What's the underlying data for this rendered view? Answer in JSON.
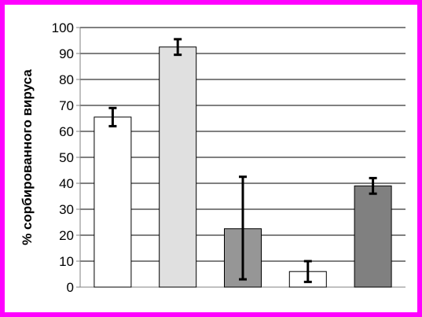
{
  "chart_data": {
    "type": "bar",
    "title": "",
    "xlabel": "",
    "ylabel": "% сорбированного вируса",
    "ylim": [
      0,
      100
    ],
    "yticks": [
      0,
      10,
      20,
      30,
      40,
      50,
      60,
      70,
      80,
      90,
      100
    ],
    "grid": true,
    "legend": "none",
    "series": [
      {
        "values": [
          65.5,
          92.5,
          22.5,
          6,
          39
        ],
        "error_low": [
          62,
          89.5,
          3,
          2,
          36
        ],
        "error_high": [
          69,
          95.5,
          42.5,
          10,
          42
        ],
        "colors": [
          "#ffffff",
          "#e0e0e0",
          "#969696",
          "#ffffff",
          "#808080"
        ]
      }
    ],
    "colors": {
      "frame": "#ff00ff",
      "background": "#ffffff",
      "gridline": "#000000",
      "axis": "#808080"
    }
  }
}
